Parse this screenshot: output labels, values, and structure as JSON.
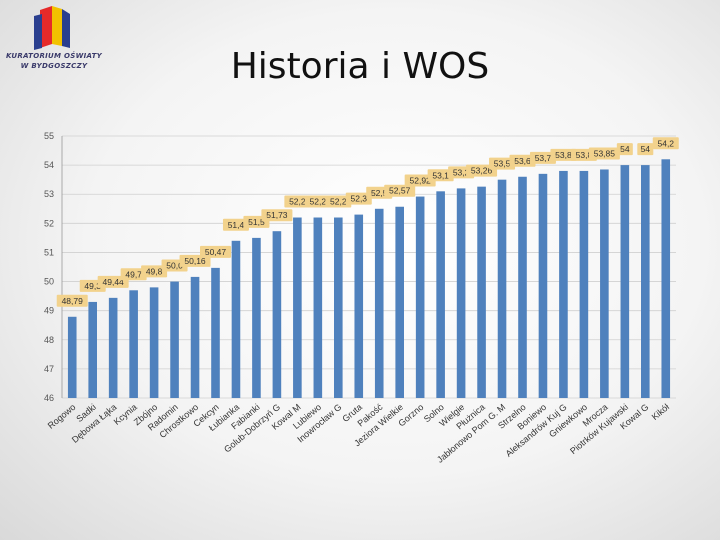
{
  "header": {
    "title": "Historia i WOS",
    "logo_line1": "KURATORIUM OŚWIATY",
    "logo_line2": "W BYDGOSZCZY"
  },
  "colors": {
    "bar": "#4f81bd",
    "label_bg": "#f2d28c",
    "grid": "#d0d0d0"
  },
  "chart_data": {
    "type": "bar",
    "title": "",
    "xlabel": "",
    "ylabel": "",
    "ylim": [
      46,
      55
    ],
    "yticks": [
      "46",
      "47",
      "48",
      "49",
      "50",
      "51",
      "52",
      "53",
      "54",
      "55"
    ],
    "grid": true,
    "legend": "none",
    "categories": [
      "Rogowo",
      "Sadki",
      "Dębowa Łąka",
      "Kcynia",
      "Zbójno",
      "Radomin",
      "Chrostkowo",
      "Cekcyn",
      "Łubianka",
      "Fabianki",
      "Golub-Dobrzyń G",
      "Kowal M",
      "Lubiewo",
      "Inowrocław G",
      "Gruta",
      "Pakość",
      "Jeziora Wielkie",
      "Gorzno",
      "Solno",
      "Wielgie",
      "Płużnica",
      "Jabłonowo Pom G. M",
      "Strzelno",
      "Boniewo",
      "Aleksandrów Kuj G",
      "Gniewkowo",
      "Mrocza",
      "Piotrków Kujawski",
      "Kowal G",
      "Kikół"
    ],
    "values": [
      48.79,
      49.3,
      49.44,
      49.7,
      49.8,
      50.0,
      50.16,
      50.47,
      51.4,
      51.5,
      51.73,
      52.2,
      52.2,
      52.2,
      52.3,
      52.5,
      52.57,
      52.92,
      53.1,
      53.2,
      53.26,
      53.5,
      53.6,
      53.7,
      53.8,
      53.8,
      53.85,
      54.0,
      54.0,
      54.2
    ],
    "data_labels": [
      "48,79",
      "49,3",
      "49,44",
      "49,7",
      "49,8",
      "50,0",
      "50,16",
      "50,47",
      "51,4",
      "51,5",
      "51,73",
      "52,2",
      "52,2",
      "52,2",
      "52,3",
      "52,5",
      "52,57",
      "52,92",
      "53,1",
      "53,2",
      "53,26",
      "53,5",
      "53,6",
      "53,7",
      "53,8",
      "53,8",
      "53,85",
      "54",
      "54",
      "54,2"
    ]
  }
}
